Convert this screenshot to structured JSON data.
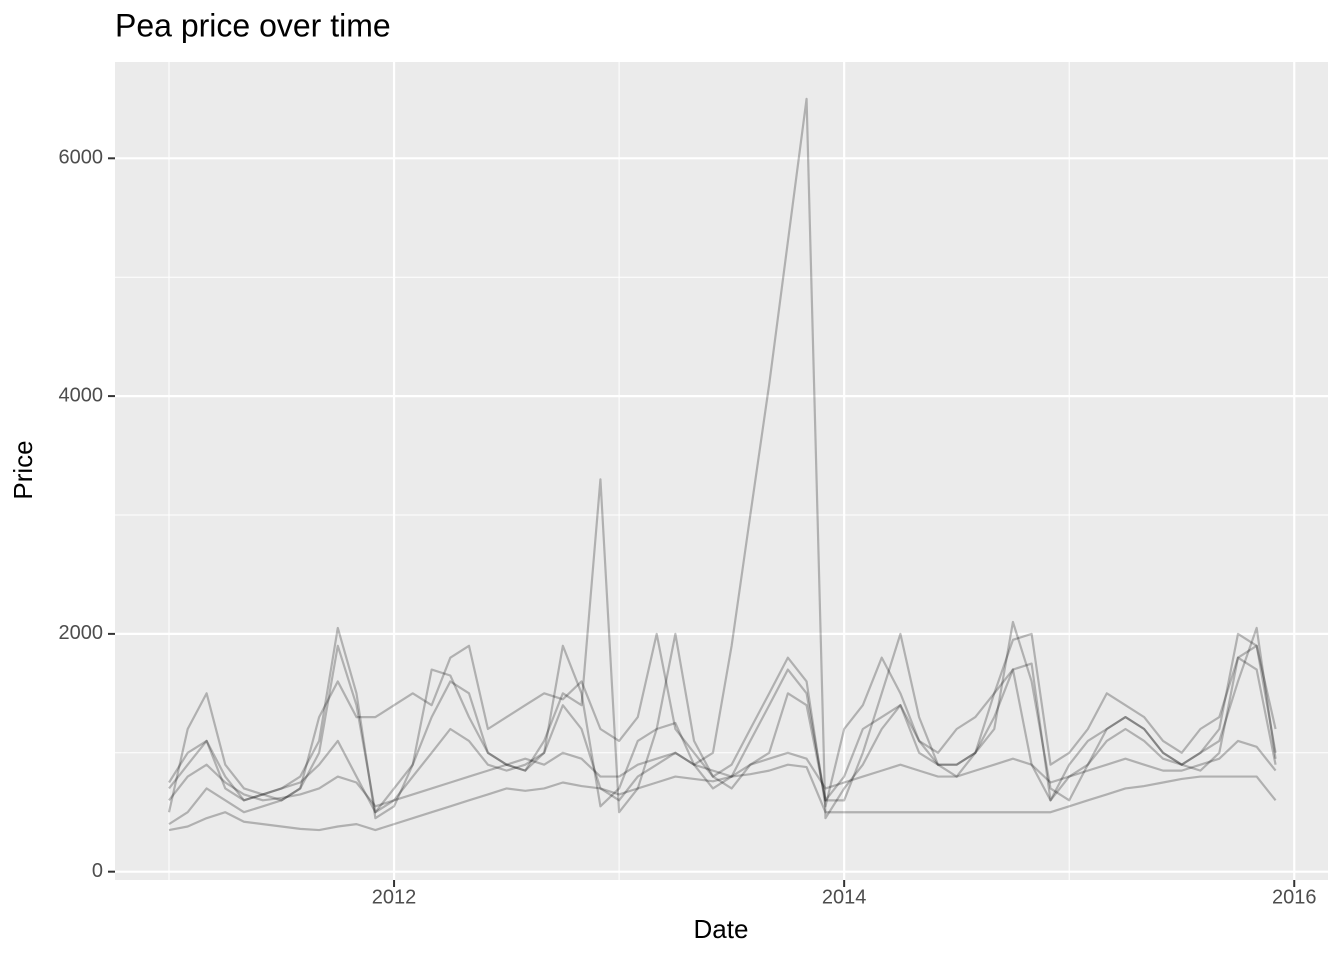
{
  "chart_data": {
    "type": "line",
    "title": "Pea price over time",
    "x_label": "Date",
    "y_label": "Price",
    "x": [
      2011,
      2011.083,
      2011.167,
      2011.25,
      2011.333,
      2011.417,
      2011.5,
      2011.583,
      2011.667,
      2011.75,
      2011.833,
      2011.917,
      2012,
      2012.083,
      2012.167,
      2012.25,
      2012.333,
      2012.417,
      2012.5,
      2012.583,
      2012.667,
      2012.75,
      2012.833,
      2012.917,
      2013,
      2013.083,
      2013.167,
      2013.25,
      2013.333,
      2013.417,
      2013.5,
      2013.583,
      2013.667,
      2013.75,
      2013.833,
      2013.917,
      2014,
      2014.083,
      2014.167,
      2014.25,
      2014.333,
      2014.417,
      2014.5,
      2014.583,
      2014.667,
      2014.75,
      2014.833,
      2014.917,
      2015,
      2015.083,
      2015.167,
      2015.25,
      2015.333,
      2015.417,
      2015.5,
      2015.583,
      2015.667,
      2015.75,
      2015.833,
      2015.917
    ],
    "series": [
      {
        "color": "#000000",
        "values": [
          700,
          900,
          1100,
          800,
          600,
          650,
          700,
          750,
          900,
          1100,
          800,
          500,
          600,
          800,
          1000,
          1200,
          1100,
          900,
          850,
          900,
          1000,
          1400,
          1200,
          700,
          600,
          800,
          900,
          1000,
          900,
          1000,
          1900,
          3000,
          4100,
          5300,
          6500,
          450,
          700,
          900,
          1200,
          1400,
          1100,
          900,
          900,
          1000,
          1500,
          1700,
          900,
          600,
          800,
          900,
          1100,
          1200,
          1100,
          950,
          900,
          850,
          1000,
          1800,
          1700,
          900
        ]
      },
      {
        "color": "#000000",
        "values": [
          400,
          500,
          700,
          600,
          500,
          550,
          600,
          700,
          1000,
          1900,
          1400,
          500,
          700,
          900,
          1300,
          1600,
          1500,
          1000,
          900,
          850,
          1100,
          1500,
          1400,
          3300,
          500,
          700,
          1200,
          2000,
          1100,
          800,
          700,
          900,
          1000,
          1500,
          1400,
          600,
          600,
          1000,
          1500,
          2000,
          1300,
          900,
          800,
          1000,
          1200,
          2100,
          1600,
          700,
          600,
          900,
          1200,
          1300,
          1200,
          1000,
          900,
          1000,
          1200,
          2000,
          1900,
          1000
        ]
      },
      {
        "color": "#000000",
        "values": [
          350,
          380,
          450,
          500,
          420,
          400,
          380,
          360,
          350,
          380,
          400,
          350,
          400,
          450,
          500,
          550,
          600,
          650,
          700,
          680,
          700,
          750,
          720,
          700,
          650,
          700,
          750,
          800,
          780,
          760,
          800,
          820,
          850,
          900,
          880,
          500,
          500,
          500,
          500,
          500,
          500,
          500,
          500,
          500,
          500,
          500,
          500,
          500,
          550,
          600,
          650,
          700,
          720,
          750,
          780,
          800,
          800,
          800,
          800,
          600
        ]
      },
      {
        "color": "#000000",
        "values": [
          750,
          1000,
          1100,
          700,
          600,
          650,
          700,
          800,
          1100,
          2050,
          1500,
          450,
          550,
          900,
          1700,
          1650,
          1300,
          1000,
          900,
          850,
          1000,
          1900,
          1500,
          550,
          700,
          1100,
          1200,
          1250,
          900,
          700,
          800,
          1100,
          1400,
          1700,
          1500,
          600,
          800,
          1200,
          1300,
          1400,
          1000,
          900,
          900,
          1000,
          1300,
          1700,
          1750,
          600,
          900,
          1100,
          1200,
          1300,
          1200,
          1000,
          900,
          1000,
          1100,
          1600,
          2050,
          950
        ]
      },
      {
        "color": "#000000",
        "values": [
          600,
          800,
          900,
          750,
          650,
          600,
          620,
          650,
          700,
          800,
          750,
          550,
          600,
          650,
          700,
          750,
          800,
          850,
          900,
          950,
          900,
          1000,
          950,
          800,
          800,
          900,
          950,
          1000,
          900,
          850,
          800,
          900,
          950,
          1000,
          950,
          700,
          750,
          800,
          850,
          900,
          850,
          800,
          800,
          850,
          900,
          950,
          900,
          750,
          800,
          850,
          900,
          950,
          900,
          850,
          850,
          900,
          950,
          1100,
          1050,
          850
        ]
      },
      {
        "color": "#000000",
        "values": [
          500,
          1200,
          1500,
          900,
          700,
          650,
          600,
          700,
          1300,
          1600,
          1300,
          1300,
          1400,
          1500,
          1400,
          1800,
          1900,
          1200,
          1300,
          1400,
          1500,
          1450,
          1600,
          1200,
          1100,
          1300,
          2000,
          1200,
          1000,
          800,
          900,
          1200,
          1500,
          1800,
          1600,
          550,
          1200,
          1400,
          1800,
          1500,
          1100,
          1000,
          1200,
          1300,
          1500,
          1950,
          2000,
          900,
          1000,
          1200,
          1500,
          1400,
          1300,
          1100,
          1000,
          1200,
          1300,
          1800,
          1900,
          1200
        ]
      }
    ],
    "alpha": 0.25,
    "xlim": [
      2010.76,
      2016.15
    ],
    "xticks": [
      2012,
      2014,
      2016
    ],
    "xminor": [
      2011,
      2013,
      2015
    ],
    "ylim": [
      -70,
      6810
    ],
    "yticks": [
      0,
      2000,
      4000,
      6000
    ],
    "yminor": [
      1000,
      3000,
      5000
    ],
    "grid": true
  }
}
